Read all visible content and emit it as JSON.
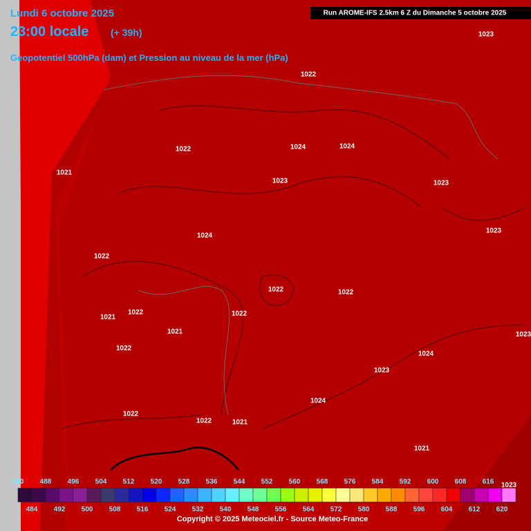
{
  "header": {
    "date": "Lundi 6 octobre 2025",
    "time": "23:00 locale",
    "lead": "(+ 39h)",
    "subtitle": "Geopotentiel 500hPa (dam) et Pression au niveau de la mer (hPa)",
    "run": "Run AROME-IFS 2.5km 6 Z du Dimanche 5 octobre 2025"
  },
  "pressure_labels": [
    "1023",
    "1022",
    "1022",
    "1024",
    "1024",
    "1021",
    "1023",
    "1023",
    "1023",
    "1024",
    "1022",
    "1022",
    "1022",
    "1021",
    "1022",
    "1022",
    "1021",
    "1023",
    "1022",
    "1024",
    "1023",
    "1024",
    "1022",
    "1022",
    "1021",
    "1021",
    "1023"
  ],
  "scale": {
    "top_labels": [
      480,
      488,
      496,
      504,
      512,
      520,
      528,
      536,
      544,
      552,
      560,
      568,
      576,
      584,
      592,
      600,
      608,
      616
    ],
    "bottom_labels": [
      484,
      492,
      500,
      508,
      516,
      524,
      532,
      540,
      548,
      556,
      564,
      572,
      580,
      588,
      596,
      604,
      612,
      620
    ]
  },
  "footer": {
    "copyright": "Copyright © 2025 Meteociel.fr - Source Meteo-France"
  }
}
